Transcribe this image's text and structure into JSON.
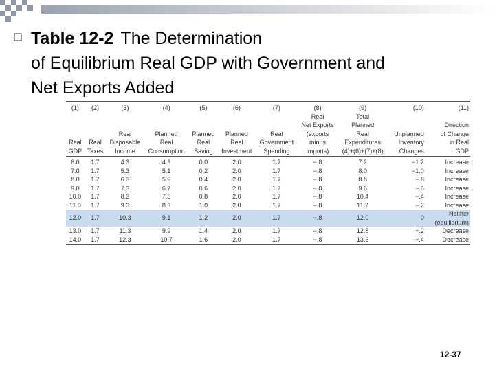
{
  "title": {
    "label": "Table 12-2",
    "lines": [
      "The Determination",
      "of Equilibrium Real GDP with Government and",
      "Net Exports Added"
    ]
  },
  "table": {
    "numbers": [
      "(1)",
      "(2)",
      "(3)",
      "(4)",
      "(5)",
      "(6)",
      "(7)",
      "(8)",
      "(9)",
      "(10)",
      "(11)"
    ],
    "headers": [
      "Real\nGDP",
      "Real\nTaxes",
      "Real\nDisposable\nIncome",
      "Planned\nReal\nConsumption",
      "Planned\nReal\nSaving",
      "Planned\nReal\nInvestment",
      "Real\nGovernment\nSpending",
      "Real\nNet Exports\n(exports\nminus\nimports)",
      "Total\nPlanned\nReal\nExpenditures\n(4)+(6)+(7)+(8)",
      "Unplanned\nInventory\nChanges",
      "Direction\nof Change\nin Real\nGDP"
    ],
    "rows": [
      [
        "6.0",
        "1.7",
        "4.3",
        "4.3",
        "0.0",
        "2.0",
        "1.7",
        "−.8",
        "7.2",
        "−1.2",
        "Increase"
      ],
      [
        "7.0",
        "1.7",
        "5.3",
        "5.1",
        "0.2",
        "2.0",
        "1.7",
        "−.8",
        "8.0",
        "−1.0",
        "Increase"
      ],
      [
        "8.0",
        "1.7",
        "6.3",
        "5.9",
        "0.4",
        "2.0",
        "1.7",
        "−.8",
        "8.8",
        "−.8",
        "Increase"
      ],
      [
        "9.0",
        "1.7",
        "7.3",
        "6.7",
        "0.6",
        "2.0",
        "1.7",
        "−.8",
        "9.6",
        "−.6",
        "Increase"
      ],
      [
        "10.0",
        "1.7",
        "8.3",
        "7.5",
        "0.8",
        "2.0",
        "1.7",
        "−.8",
        "10.4",
        "−.4",
        "Increase"
      ],
      [
        "11.0",
        "1.7",
        "9.3",
        "8.3",
        "1.0",
        "2.0",
        "1.7",
        "−.8",
        "11.2",
        "−.2",
        "Increase"
      ],
      [
        "12.0",
        "1.7",
        "10.3",
        "9.1",
        "1.2",
        "2.0",
        "1.7",
        "−.8",
        "12.0",
        "0",
        "Neither\n(equilibrium)"
      ],
      [
        "13.0",
        "1.7",
        "11.3",
        "9.9",
        "1.4",
        "2.0",
        "1.7",
        "−.8",
        "12.8",
        "+.2",
        "Decrease"
      ],
      [
        "14.0",
        "1.7",
        "12.3",
        "10.7",
        "1.6",
        "2.0",
        "1.7",
        "−.8",
        "13.6",
        "+.4",
        "Decrease"
      ]
    ],
    "highlight_row": 6
  },
  "page_number": "12-37"
}
